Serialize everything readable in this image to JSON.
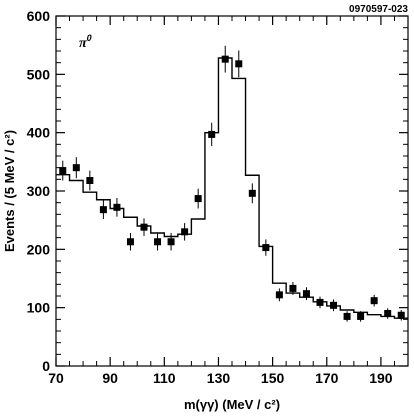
{
  "figure_id": "0970597-023",
  "chart_data": {
    "type": "scatter",
    "title": "",
    "xlabel": "m(γγ) (MeV / c²)",
    "ylabel": "Events / (5 MeV / c²)",
    "annotation": {
      "symbol": "π",
      "superscript": "0"
    },
    "xlim": [
      70,
      200
    ],
    "ylim": [
      0,
      600
    ],
    "x_ticks": [
      70,
      90,
      110,
      130,
      150,
      170,
      190
    ],
    "y_ticks": [
      0,
      100,
      200,
      300,
      400,
      500,
      600
    ],
    "grid": false,
    "series": [
      {
        "kind": "data_points_with_errors",
        "x": [
          72.5,
          77.5,
          82.5,
          87.5,
          92.5,
          97.5,
          102.5,
          107.5,
          112.5,
          117.5,
          122.5,
          127.5,
          132.5,
          137.5,
          142.5,
          147.5,
          152.5,
          157.5,
          162.5,
          167.5,
          172.5,
          177.5,
          182.5,
          187.5,
          192.5,
          197.5
        ],
        "y": [
          335,
          340,
          318,
          268,
          272,
          213,
          238,
          213,
          213,
          230,
          287,
          397,
          526,
          518,
          296,
          203,
          122,
          133,
          124,
          109,
          104,
          85,
          85,
          112,
          90,
          87
        ],
        "err": [
          17,
          18,
          17,
          16,
          16,
          15,
          15,
          15,
          15,
          15,
          17,
          20,
          23,
          23,
          17,
          14,
          11,
          11,
          11,
          10,
          10,
          9,
          9,
          10,
          9,
          9
        ]
      },
      {
        "kind": "fit_histogram",
        "x_edges": [
          70,
          75,
          80,
          85,
          90,
          95,
          100,
          105,
          110,
          115,
          120,
          125,
          130,
          135,
          140,
          145,
          150,
          155,
          160,
          165,
          170,
          175,
          180,
          185,
          190,
          195,
          200
        ],
        "values": [
          328,
          318,
          298,
          285,
          270,
          255,
          240,
          228,
          222,
          226,
          252,
          400,
          528,
          493,
          327,
          205,
          142,
          125,
          118,
          110,
          103,
          96,
          92,
          88,
          85,
          82
        ]
      }
    ]
  }
}
